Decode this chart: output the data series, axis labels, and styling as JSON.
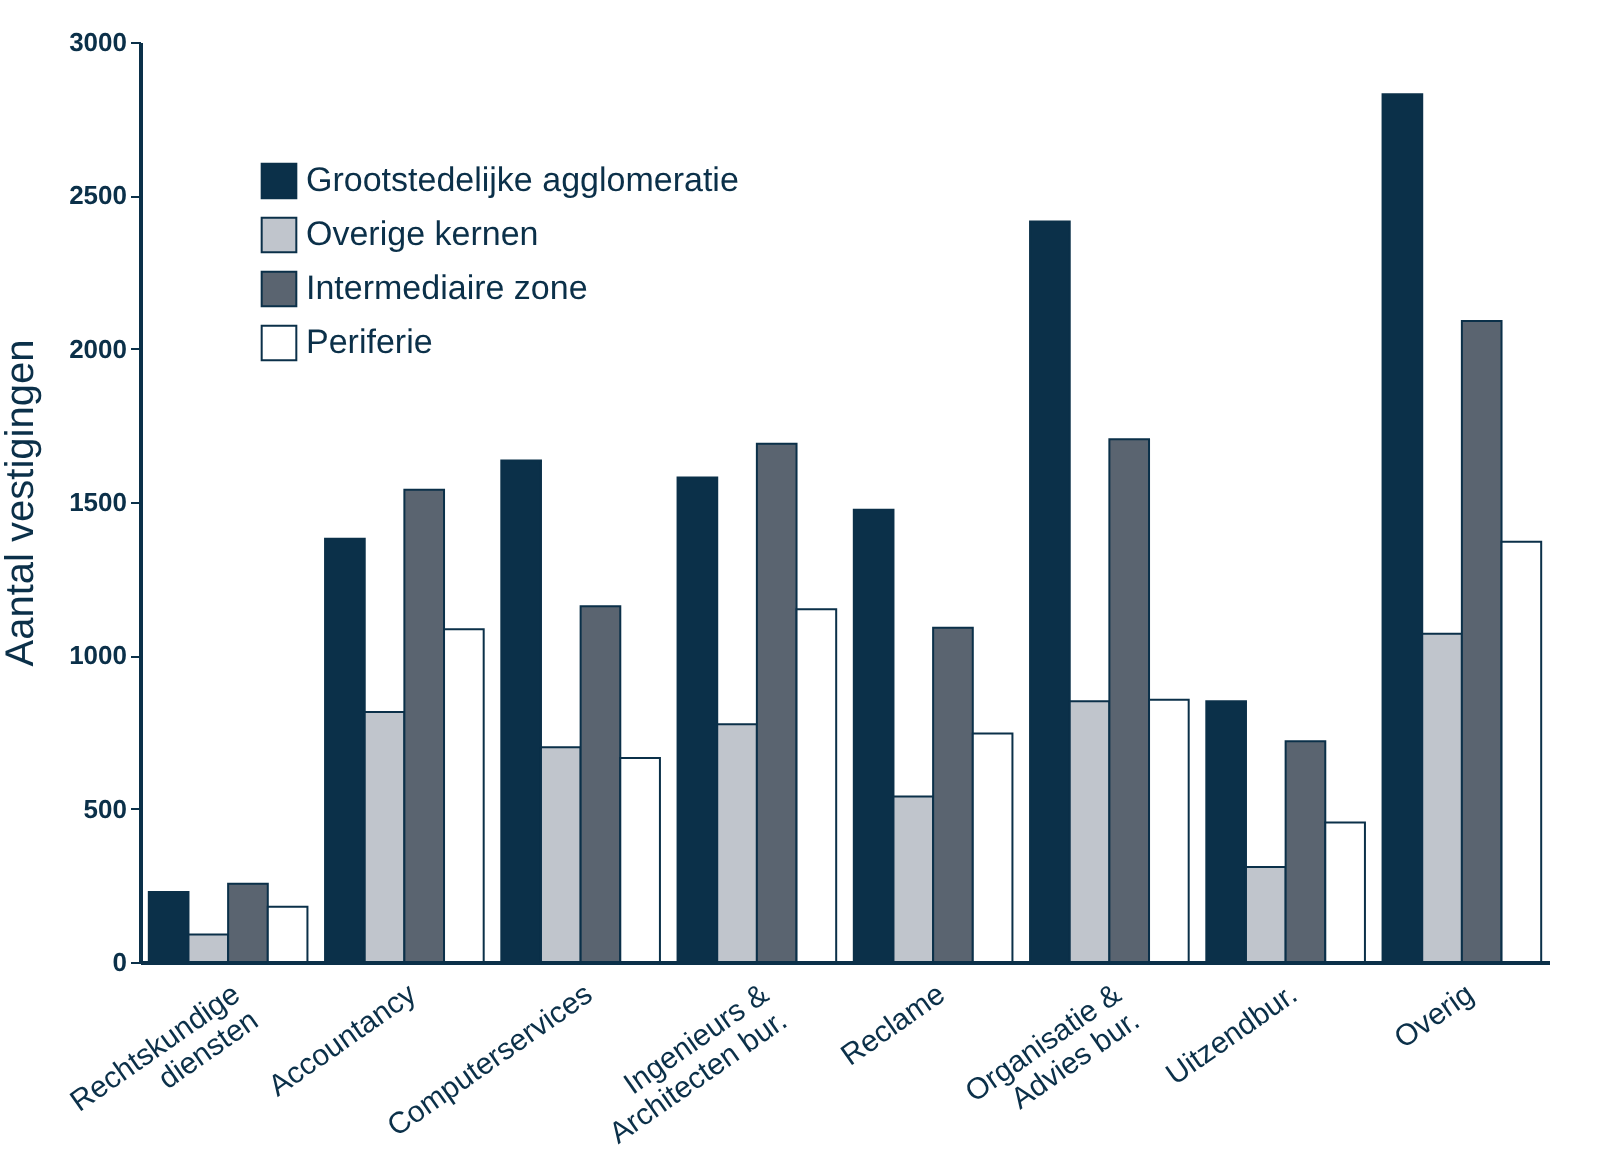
{
  "chart_data": {
    "type": "bar",
    "ylabel": "Aantal vestigingen",
    "categories": [
      "Rechtskundige\ndiensten",
      "Accountancy",
      "Computerservices",
      "Ingenieurs &\nArchitecten bur.",
      "Reclame",
      "Organisatie &\nAdvies bur.",
      "Uitzendbur.",
      "Overig"
    ],
    "series": [
      {
        "name": "Grootstedelijke agglomeratie",
        "color": "#0b3049",
        "values": [
          228,
          1380,
          1635,
          1580,
          1475,
          2415,
          850,
          2830
        ]
      },
      {
        "name": "Overige kernen",
        "color": "#c0c5cc",
        "values": [
          90,
          815,
          700,
          775,
          540,
          850,
          310,
          1070
        ]
      },
      {
        "name": "Intermediaire zone",
        "color": "#5a6470",
        "values": [
          255,
          1540,
          1160,
          1690,
          1090,
          1705,
          720,
          2090
        ]
      },
      {
        "name": "Periferie",
        "color": "#ffffff",
        "values": [
          180,
          1085,
          665,
          1150,
          745,
          855,
          455,
          1370
        ]
      }
    ],
    "ylim": [
      0,
      3000
    ],
    "yticks": [
      0,
      500,
      1000,
      1500,
      2000,
      2500,
      3000
    ],
    "grid": false,
    "legend": "top left"
  }
}
